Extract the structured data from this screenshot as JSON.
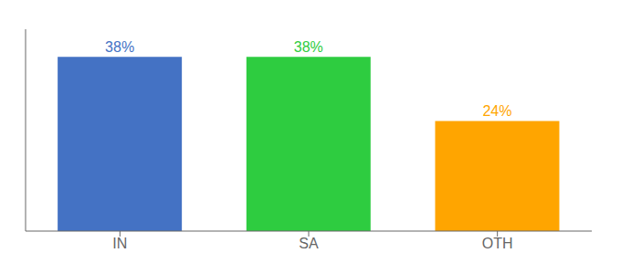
{
  "chart_data": {
    "type": "bar",
    "categories": [
      "IN",
      "SA",
      "OTH"
    ],
    "values": [
      38,
      38,
      24
    ],
    "value_labels": [
      "38%",
      "38%",
      "24%"
    ],
    "colors": [
      "#4472C4",
      "#2ECC40",
      "#FFA500"
    ],
    "ylim": [
      0,
      44
    ],
    "data_labels": true,
    "tick_labels": "x"
  }
}
